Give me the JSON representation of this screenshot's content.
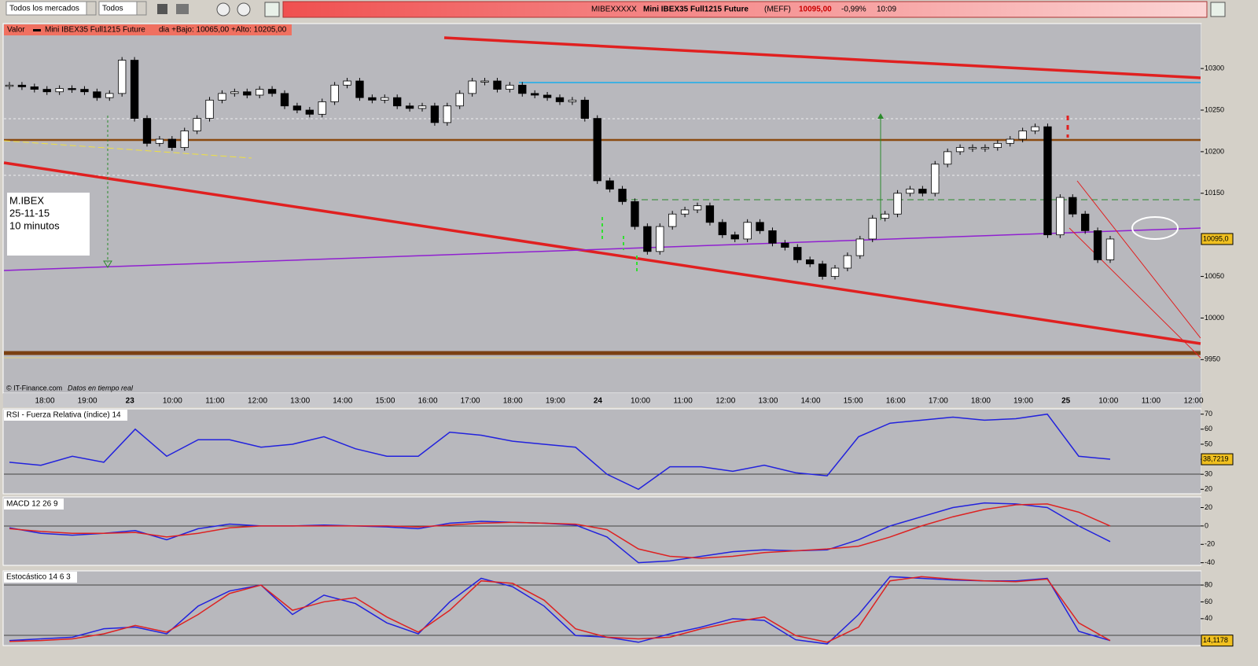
{
  "toolbar": {
    "market_select": "Todos los mercados",
    "filter_select": "Todos",
    "symbol": "MIBEXXXXX",
    "name": "Mini IBEX35 Full1215 Future",
    "exchange": "(MEFF)",
    "last": "10095,00",
    "change": "-0,99%",
    "time": "10:09"
  },
  "price_header": {
    "label": "Valor",
    "name": "Mini IBEX35 Full1215 Future",
    "range": "dia +Bajo: 10065,00 +Alto: 10205,00"
  },
  "annotation": [
    "M.IBEX",
    "25-11-15",
    "10 minutos"
  ],
  "footer": {
    "copyright": "© IT-Finance.com",
    "note": "Datos en tiempo real"
  },
  "time_axis": [
    "18:00",
    "19:00",
    "23",
    "10:00",
    "11:00",
    "12:00",
    "13:00",
    "14:00",
    "15:00",
    "16:00",
    "17:00",
    "18:00",
    "19:00",
    "24",
    "10:00",
    "11:00",
    "12:00",
    "13:00",
    "14:00",
    "15:00",
    "16:00",
    "17:00",
    "18:00",
    "19:00",
    "25",
    "10:00",
    "11:00",
    "12:00"
  ],
  "chart_data": [
    {
      "type": "candlestick",
      "ylim": [
        9921,
        10337
      ],
      "yticks": [
        9950,
        10000,
        10050,
        10150,
        10200,
        10250,
        10300
      ],
      "last_label": "10095,0",
      "values": [
        10280,
        10278,
        10275,
        10272,
        10276,
        10275,
        10272,
        10265,
        10270,
        10310,
        10240,
        10210,
        10215,
        10205,
        10225,
        10240,
        10262,
        10270,
        10272,
        10268,
        10275,
        10270,
        10255,
        10250,
        10245,
        10260,
        10280,
        10285,
        10265,
        10262,
        10265,
        10255,
        10252,
        10255,
        10235,
        10255,
        10270,
        10285,
        10285,
        10275,
        10280,
        10270,
        10268,
        10265,
        10260,
        10262,
        10240,
        10165,
        10155,
        10140,
        10110,
        10080,
        10110,
        10125,
        10130,
        10135,
        10115,
        10100,
        10095,
        10115,
        10105,
        10090,
        10085,
        10070,
        10065,
        10050,
        10060,
        10075,
        10095,
        10120,
        10125,
        10150,
        10155,
        10150,
        10185,
        10200,
        10205,
        10205,
        10205,
        10210,
        10215,
        10225,
        10230,
        10100,
        10145,
        10125,
        10105,
        10070,
        10095
      ]
    },
    {
      "type": "line",
      "title": "RSI - Fuerza Relativa (índice) 14",
      "ylim": [
        17,
        73
      ],
      "yticks": [
        20,
        30,
        40,
        50,
        60,
        70
      ],
      "last_label": "38,7219",
      "series": [
        {
          "color": "#2222dd",
          "values": [
            38,
            36,
            42,
            38,
            60,
            42,
            53,
            53,
            48,
            50,
            55,
            47,
            42,
            42,
            58,
            56,
            52,
            50,
            48,
            30,
            20,
            35,
            35,
            32,
            36,
            31,
            29,
            55,
            64,
            66,
            68,
            66,
            67,
            70,
            42,
            40
          ]
        }
      ]
    },
    {
      "type": "line",
      "title": "MACD 12 26 9",
      "ylim": [
        -42,
        29
      ],
      "yticks": [
        -40,
        -20,
        0,
        20
      ],
      "series": [
        {
          "color": "#2222dd",
          "values": [
            -2,
            -8,
            -10,
            -8,
            -5,
            -15,
            -3,
            2,
            0,
            0,
            1,
            0,
            -1,
            -3,
            3,
            5,
            4,
            3,
            1,
            -12,
            -40,
            -38,
            -33,
            -28,
            -26,
            -27,
            -26,
            -15,
            0,
            10,
            20,
            25,
            24,
            20,
            0,
            -17
          ]
        },
        {
          "color": "#dd2222",
          "values": [
            -3,
            -6,
            -8,
            -8,
            -7,
            -12,
            -8,
            -2,
            0,
            0,
            0,
            0,
            0,
            -1,
            1,
            3,
            4,
            3,
            2,
            -4,
            -25,
            -33,
            -35,
            -33,
            -29,
            -27,
            -25,
            -22,
            -12,
            0,
            10,
            18,
            23,
            24,
            15,
            0
          ]
        }
      ]
    },
    {
      "type": "line",
      "title": "Estocástico 14 6 3",
      "ylim": [
        9,
        95
      ],
      "yticks": [
        40,
        60,
        80
      ],
      "last_label": "14,1178",
      "series": [
        {
          "color": "#2222dd",
          "values": [
            14,
            16,
            18,
            28,
            30,
            22,
            55,
            73,
            80,
            45,
            68,
            58,
            35,
            22,
            60,
            88,
            78,
            55,
            20,
            18,
            12,
            22,
            30,
            40,
            38,
            15,
            10,
            45,
            90,
            88,
            86,
            85,
            85,
            88,
            25,
            14
          ]
        },
        {
          "color": "#dd2222",
          "values": [
            13,
            14,
            16,
            22,
            32,
            24,
            45,
            70,
            80,
            50,
            60,
            65,
            42,
            24,
            50,
            85,
            82,
            62,
            28,
            18,
            16,
            18,
            28,
            36,
            42,
            20,
            12,
            30,
            85,
            90,
            87,
            85,
            84,
            87,
            35,
            14
          ]
        }
      ]
    }
  ]
}
